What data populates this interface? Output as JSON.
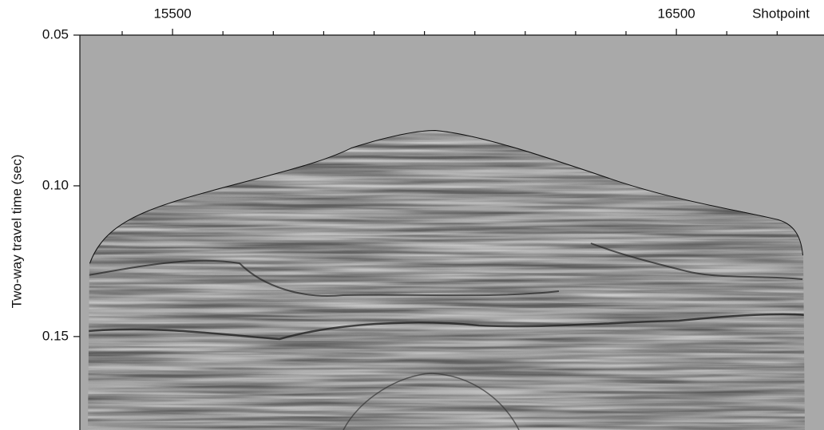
{
  "chart_data": {
    "type": "seismic-section",
    "x_label": "Shotpoint",
    "y_label": "Two-way travel time (sec)",
    "xlim": [
      15316,
      16793
    ],
    "xticks": [
      15500,
      16500
    ],
    "xminorticks": [
      15400,
      15600,
      15700,
      15800,
      15900,
      16000,
      16100,
      16200,
      16300,
      16400,
      16600,
      16700
    ],
    "ylim": [
      0.05,
      0.181
    ],
    "yticks": [
      0.05,
      {
        "value": 0.1,
        "label": "0.10"
      },
      0.15
    ],
    "y_inverted": true,
    "background_color": "#a9a9a9"
  }
}
